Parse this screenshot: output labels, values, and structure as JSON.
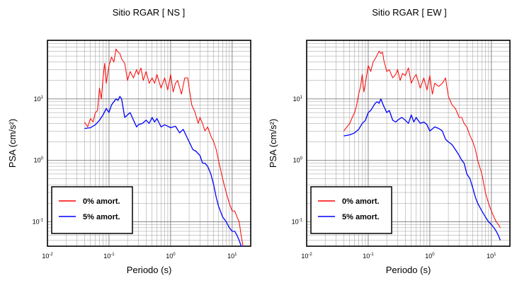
{
  "chart_data": [
    {
      "type": "line",
      "title": "Sitio RGAR [ NS ]",
      "xlabel": "Periodo (s)",
      "ylabel": "PSA (cm/s²)",
      "xscale": "log",
      "yscale": "log",
      "xlim": [
        0.01,
        20
      ],
      "ylim": [
        0.04,
        90
      ],
      "grid": true,
      "legend_position": "bottom-left",
      "x_ticks": [
        {
          "base": "10",
          "exp": "-2"
        },
        {
          "base": "10",
          "exp": "-1"
        },
        {
          "base": "10",
          "exp": "0",
          "text": "10⁰"
        },
        {
          "base": "10",
          "exp": "1"
        }
      ],
      "y_ticks": [
        {
          "base": "10",
          "exp": "-1"
        },
        {
          "base": "10",
          "exp": "0"
        },
        {
          "base": "10",
          "exp": "1"
        }
      ],
      "series": [
        {
          "name": "0% amort.",
          "color": "#ff0000",
          "x": [
            0.04,
            0.045,
            0.05,
            0.055,
            0.06,
            0.065,
            0.07,
            0.075,
            0.08,
            0.085,
            0.09,
            0.1,
            0.11,
            0.12,
            0.13,
            0.14,
            0.15,
            0.16,
            0.18,
            0.2,
            0.22,
            0.25,
            0.28,
            0.3,
            0.33,
            0.36,
            0.4,
            0.45,
            0.5,
            0.55,
            0.6,
            0.7,
            0.8,
            0.9,
            1.0,
            1.1,
            1.2,
            1.3,
            1.5,
            1.7,
            1.9,
            2.0,
            2.2,
            2.5,
            2.8,
            3.0,
            3.3,
            3.6,
            4.0,
            4.5,
            5.0,
            5.5,
            6.0,
            7.0,
            8.0,
            9.0,
            10.0,
            11.0,
            12.0,
            13.0,
            14.0,
            15.0
          ],
          "y": [
            4.2,
            3.5,
            4.8,
            4.2,
            6.0,
            6.5,
            15,
            10,
            22,
            38,
            18,
            35,
            48,
            40,
            65,
            58,
            55,
            45,
            38,
            20,
            28,
            22,
            30,
            25,
            32,
            20,
            28,
            18,
            22,
            18,
            25,
            15,
            22,
            14,
            25,
            13,
            18,
            20,
            12,
            22,
            22,
            15,
            8,
            6,
            4,
            5,
            4,
            3,
            3.5,
            2.5,
            2,
            1.5,
            1,
            0.5,
            0.3,
            0.2,
            0.15,
            0.15,
            0.12,
            0.1,
            0.06,
            0.04
          ]
        },
        {
          "name": "5% amort.",
          "color": "#0000ff",
          "x": [
            0.04,
            0.05,
            0.06,
            0.07,
            0.08,
            0.09,
            0.1,
            0.11,
            0.12,
            0.13,
            0.14,
            0.15,
            0.16,
            0.18,
            0.2,
            0.22,
            0.25,
            0.28,
            0.3,
            0.35,
            0.4,
            0.45,
            0.5,
            0.55,
            0.6,
            0.7,
            0.8,
            0.9,
            1.0,
            1.2,
            1.4,
            1.6,
            1.8,
            2.0,
            2.3,
            2.6,
            3.0,
            3.3,
            3.6,
            4.0,
            4.5,
            5.0,
            5.5,
            6.0,
            7.0,
            8.0,
            9.0,
            10.0,
            11.0,
            12.0,
            13.0,
            14.0,
            15.0
          ],
          "y": [
            3.3,
            3.4,
            3.8,
            4.5,
            5.5,
            7.0,
            6.0,
            8.0,
            9.0,
            10,
            9.5,
            11,
            10,
            5.0,
            5.5,
            6.0,
            4.5,
            3.5,
            3.8,
            4.0,
            4.5,
            4.0,
            5.0,
            4.2,
            4.8,
            3.5,
            3.8,
            3.6,
            3.4,
            3.6,
            2.8,
            3.2,
            2.5,
            2.0,
            1.5,
            1.4,
            1.2,
            0.9,
            0.9,
            0.8,
            0.6,
            0.4,
            0.25,
            0.18,
            0.12,
            0.1,
            0.08,
            0.07,
            0.07,
            0.06,
            0.05,
            0.04,
            0.04
          ]
        }
      ]
    },
    {
      "type": "line",
      "title": "Sitio RGAR [ EW ]",
      "xlabel": "Periodo (s)",
      "ylabel": "PSA (cm/s²)",
      "xscale": "log",
      "yscale": "log",
      "xlim": [
        0.01,
        20
      ],
      "ylim": [
        0.04,
        90
      ],
      "grid": true,
      "legend_position": "bottom-left",
      "x_ticks": [
        {
          "base": "10",
          "exp": "-2"
        },
        {
          "base": "10",
          "exp": "-1"
        },
        {
          "base": "10",
          "exp": "0",
          "text": "10⁰"
        },
        {
          "base": "10",
          "exp": "1"
        }
      ],
      "y_ticks": [
        {
          "base": "10",
          "exp": "-1"
        },
        {
          "base": "10",
          "exp": "0"
        },
        {
          "base": "10",
          "exp": "1"
        }
      ],
      "series": [
        {
          "name": "0% amort.",
          "color": "#ff0000",
          "x": [
            0.04,
            0.045,
            0.05,
            0.055,
            0.06,
            0.065,
            0.07,
            0.075,
            0.08,
            0.085,
            0.09,
            0.1,
            0.11,
            0.12,
            0.13,
            0.14,
            0.15,
            0.16,
            0.17,
            0.18,
            0.2,
            0.22,
            0.25,
            0.28,
            0.3,
            0.33,
            0.36,
            0.4,
            0.45,
            0.5,
            0.55,
            0.6,
            0.7,
            0.8,
            0.9,
            1.0,
            1.1,
            1.2,
            1.4,
            1.6,
            1.8,
            2.0,
            2.3,
            2.6,
            3.0,
            3.3,
            3.6,
            4.0,
            4.5,
            5.0,
            5.5,
            6.0,
            7.0,
            8.0,
            9.0,
            10.0,
            11.0,
            12.0,
            13.0,
            14.0
          ],
          "y": [
            3.0,
            3.5,
            4.0,
            5.0,
            6.0,
            8.0,
            12,
            16,
            25,
            13,
            18,
            35,
            28,
            40,
            45,
            52,
            60,
            55,
            58,
            42,
            28,
            30,
            22,
            25,
            30,
            20,
            26,
            24,
            32,
            18,
            22,
            25,
            15,
            22,
            14,
            24,
            12,
            18,
            16,
            18,
            22,
            11,
            8,
            7,
            5,
            5,
            4,
            3.5,
            2.5,
            2,
            1.5,
            1.0,
            0.6,
            0.3,
            0.2,
            0.15,
            0.12,
            0.1,
            0.09,
            0.08
          ]
        },
        {
          "name": "5% amort.",
          "color": "#0000ff",
          "x": [
            0.04,
            0.05,
            0.06,
            0.07,
            0.08,
            0.09,
            0.1,
            0.11,
            0.12,
            0.13,
            0.14,
            0.15,
            0.16,
            0.18,
            0.2,
            0.22,
            0.25,
            0.28,
            0.3,
            0.35,
            0.4,
            0.45,
            0.5,
            0.55,
            0.6,
            0.7,
            0.8,
            0.9,
            1.0,
            1.2,
            1.4,
            1.6,
            1.8,
            2.0,
            2.3,
            2.6,
            3.0,
            3.3,
            3.6,
            4.0,
            4.5,
            5.0,
            5.5,
            6.0,
            7.0,
            8.0,
            9.0,
            10.0,
            11.0,
            12.0,
            13.0,
            14.0
          ],
          "y": [
            2.5,
            2.6,
            2.8,
            3.2,
            4.0,
            4.5,
            6.0,
            6.5,
            7.5,
            8.5,
            9.0,
            8.5,
            10,
            7.5,
            6.0,
            6.5,
            4.5,
            4.2,
            4.5,
            5.0,
            4.5,
            4.0,
            5.5,
            4.2,
            5.0,
            4.0,
            4.2,
            3.8,
            3.0,
            3.5,
            3.3,
            3.0,
            2.2,
            2.0,
            1.8,
            1.5,
            1.2,
            1.0,
            0.9,
            0.6,
            0.5,
            0.35,
            0.25,
            0.2,
            0.15,
            0.12,
            0.1,
            0.09,
            0.08,
            0.07,
            0.06,
            0.05
          ]
        }
      ]
    }
  ]
}
